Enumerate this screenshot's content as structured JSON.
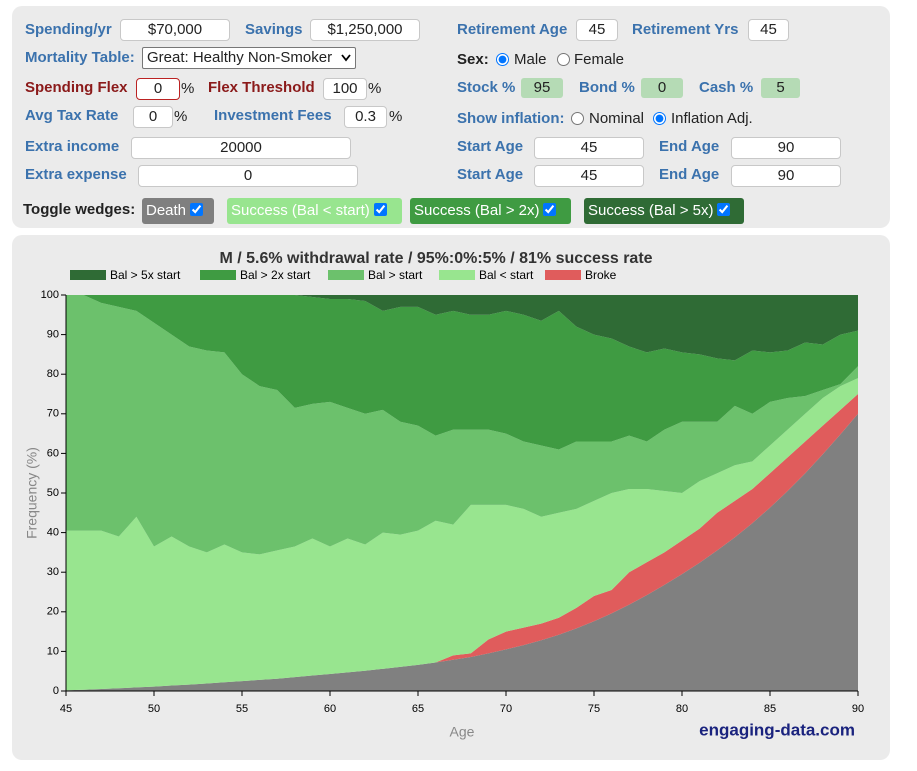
{
  "form": {
    "spending": {
      "label": "Spending/yr",
      "value": "$70,000"
    },
    "savings": {
      "label": "Savings",
      "value": "$1,250,000"
    },
    "retirement_age": {
      "label": "Retirement Age",
      "value": "45"
    },
    "retirement_yrs": {
      "label": "Retirement Yrs",
      "value": "45"
    },
    "mortality": {
      "label": "Mortality Table:",
      "value": "Great: Healthy Non-Smoker"
    },
    "sex": {
      "label": "Sex:",
      "options": [
        "Male",
        "Female"
      ],
      "selected": 0
    },
    "spending_flex": {
      "label": "Spending Flex",
      "value": "0",
      "unit": "%"
    },
    "flex_threshold": {
      "label": "Flex Threshold",
      "value": "100",
      "unit": "%"
    },
    "stock": {
      "label": "Stock %",
      "value": "95"
    },
    "bond": {
      "label": "Bond %",
      "value": "0"
    },
    "cash": {
      "label": "Cash %",
      "value": "5"
    },
    "avg_tax": {
      "label": "Avg Tax Rate",
      "value": "0",
      "unit": "%"
    },
    "fees": {
      "label": "Investment Fees",
      "value": "0.3",
      "unit": "%"
    },
    "show_inflation": {
      "label": "Show inflation:",
      "options": [
        "Nominal",
        "Inflation Adj."
      ],
      "selected": 1
    },
    "extra_income": {
      "label": "Extra income",
      "value": "20000",
      "start_label": "Start Age",
      "start": "45",
      "end_label": "End Age",
      "end": "90"
    },
    "extra_expense": {
      "label": "Extra expense",
      "value": "0",
      "start_label": "Start Age",
      "start": "45",
      "end_label": "End Age",
      "end": "90"
    },
    "toggle": {
      "label": "Toggle wedges:",
      "buttons": [
        "Death",
        "Success (Bal < start)",
        "Success (Bal > 2x)",
        "Success (Bal > 5x)"
      ]
    }
  },
  "chart_data": {
    "type": "stacked_area",
    "title": "M / 5.6% withdrawal rate / 95%:0%:5% / 81% success rate",
    "x_label": "Age",
    "y_label": "Frequency (%)",
    "x": [
      45,
      46,
      47,
      48,
      49,
      50,
      51,
      52,
      53,
      54,
      55,
      56,
      57,
      58,
      59,
      60,
      61,
      62,
      63,
      64,
      65,
      66,
      67,
      68,
      69,
      70,
      71,
      72,
      73,
      74,
      75,
      76,
      77,
      78,
      79,
      80,
      81,
      82,
      83,
      84,
      85,
      86,
      87,
      88,
      89,
      90
    ],
    "xlim": [
      45,
      90
    ],
    "xticks": [
      45,
      50,
      55,
      60,
      65,
      70,
      75,
      80,
      85,
      90
    ],
    "ylim": [
      0,
      100
    ],
    "yticks": [
      0,
      10,
      20,
      30,
      40,
      50,
      60,
      70,
      80,
      90,
      100
    ],
    "series": [
      {
        "name": "Death",
        "in_legend": false,
        "color": "#808080",
        "values": [
          0.2,
          0.3,
          0.5,
          0.7,
          0.9,
          1.1,
          1.4,
          1.6,
          1.9,
          2.2,
          2.5,
          2.8,
          3.1,
          3.5,
          3.9,
          4.3,
          4.7,
          5.1,
          5.6,
          6.1,
          6.6,
          7.2,
          7.9,
          8.6,
          9.5,
          10.5,
          11.6,
          12.8,
          14.2,
          15.8,
          17.6,
          19.6,
          21.8,
          24.2,
          26.8,
          29.5,
          32.4,
          35.5,
          38.8,
          42.4,
          46.3,
          50.5,
          55,
          59.8,
          64.8,
          70
        ]
      },
      {
        "name": "Broke",
        "color": "#e05c5c",
        "values": [
          0,
          0,
          0,
          0,
          0,
          0,
          0,
          0,
          0,
          0,
          0,
          0,
          0,
          0,
          0,
          0,
          0,
          0,
          0,
          0,
          0,
          0,
          1.1,
          0.9,
          3.5,
          4.5,
          4.4,
          4.2,
          4.3,
          5.2,
          6.4,
          5.9,
          8.2,
          8.3,
          8.2,
          8.5,
          8.6,
          9.5,
          9.2,
          8.6,
          8.7,
          8.5,
          8,
          7.2,
          6.2,
          5
        ]
      },
      {
        "name": "Bal < start",
        "color": "#98e58f",
        "values": [
          40.3,
          40.2,
          40,
          38.3,
          43.1,
          35.4,
          37.6,
          34.9,
          33.1,
          34.8,
          32.5,
          31.7,
          32.4,
          33,
          34.6,
          32.2,
          33.8,
          31.9,
          34.4,
          33.4,
          33.9,
          35.8,
          33,
          37.5,
          34,
          32,
          30,
          27,
          26.5,
          25,
          24,
          24.5,
          21,
          18.5,
          15.5,
          12,
          12,
          10,
          9,
          7,
          7,
          7,
          7,
          7,
          6,
          4
        ]
      },
      {
        "name": "Bal > start",
        "color": "#6cc16c",
        "values": [
          59.5,
          59.5,
          57.5,
          58,
          52,
          56.5,
          51,
          50.5,
          51,
          48.5,
          45,
          42.5,
          40.5,
          35,
          34,
          36.5,
          33,
          33,
          31,
          28.5,
          26.5,
          21.5,
          24,
          19,
          19,
          18,
          17,
          18,
          16,
          17,
          15,
          13,
          13.5,
          12,
          15.5,
          18,
          15,
          13,
          15,
          12,
          11,
          8,
          4.5,
          2,
          0.5,
          3
        ]
      },
      {
        "name": "Bal > 2x start",
        "color": "#3f9b42",
        "values": [
          0,
          0,
          2,
          3,
          4,
          7,
          10,
          13,
          14,
          14.5,
          20,
          23,
          24,
          28.5,
          27,
          26,
          27.5,
          28.5,
          25,
          29,
          30,
          30.5,
          30,
          29,
          29,
          31,
          32,
          31.5,
          35,
          29,
          27,
          26,
          22.5,
          22.5,
          20.5,
          17.5,
          17,
          16,
          11.5,
          16,
          12.5,
          12,
          13.5,
          11.5,
          12.5,
          9
        ]
      },
      {
        "name": "Bal > 5x start",
        "color": "#2f6b35",
        "values": [
          0,
          0,
          0,
          0,
          0,
          0,
          0,
          0,
          0,
          0,
          0,
          0,
          0,
          0,
          0.5,
          1,
          1,
          1.5,
          4,
          3,
          3,
          5,
          4,
          5,
          5,
          4,
          5,
          6.5,
          4,
          8,
          10,
          11,
          13,
          14.5,
          13.5,
          14.5,
          15,
          16,
          16.5,
          14,
          14.5,
          14,
          12,
          12.5,
          10,
          9
        ]
      }
    ]
  },
  "footer": "engaging-data.com"
}
